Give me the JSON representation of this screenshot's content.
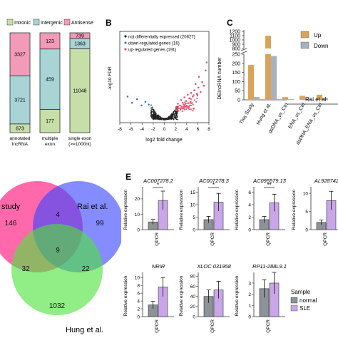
{
  "panel_labels": {
    "b": "B",
    "c": "C",
    "e": "E"
  },
  "chart_data": [
    {
      "id": "stacked",
      "type": "bar",
      "legend": [
        "Intronic",
        "Intergenic",
        "Antisense"
      ],
      "colors": {
        "Intronic": "#c6dfa8",
        "Intergenic": "#a8d4d6",
        "Antisense": "#f29bb8"
      },
      "categories": [
        "annotated lncRNA",
        "multiple exon",
        "single exon (>=1000nt)"
      ],
      "category_lines": [
        [
          "annotated",
          "lncRNA"
        ],
        [
          "multiple",
          "exon"
        ],
        [
          "single exon",
          "(>=1000nt)"
        ]
      ],
      "series": [
        {
          "name": "Intronic",
          "values": [
            673,
            177,
            11048
          ]
        },
        {
          "name": "Intergenic",
          "values": [
            3721,
            459,
            1363
          ]
        },
        {
          "name": "Antisense",
          "values": [
            3327,
            123,
            739
          ]
        }
      ]
    },
    {
      "id": "volcano",
      "type": "scatter",
      "xlabel": "log2 fold change",
      "ylabel": "-log10 FDR",
      "xticks": [
        "-8",
        "-6",
        "-4",
        "-2",
        "0",
        "2",
        "4",
        "6",
        "8"
      ],
      "xlim": [
        -8,
        8
      ],
      "legend": [
        {
          "label": "not differentially expressed (20627)",
          "color": "#222222"
        },
        {
          "label": "down-regulated genes (16)",
          "color": "#3a7bd5"
        },
        {
          "label": "up-regulated genes (191)",
          "color": "#e8536f"
        }
      ],
      "points_up": [
        [
          2.1,
          1.4
        ],
        [
          2.4,
          1.8
        ],
        [
          2.8,
          1.6
        ],
        [
          3.0,
          2.2
        ],
        [
          3.3,
          1.9
        ],
        [
          3.6,
          2.5
        ],
        [
          3.9,
          2.1
        ],
        [
          4.2,
          2.8
        ],
        [
          4.5,
          2.4
        ],
        [
          4.8,
          3.0
        ],
        [
          5.1,
          2.6
        ],
        [
          5.4,
          3.3
        ],
        [
          5.8,
          2.9
        ],
        [
          6.1,
          3.6
        ],
        [
          6.5,
          3.1
        ],
        [
          6.8,
          4.2
        ],
        [
          7.1,
          3.8
        ],
        [
          7.4,
          5.5
        ],
        [
          7.6,
          6.4
        ],
        [
          6.2,
          4.8
        ],
        [
          5.6,
          4.0
        ]
      ],
      "points_down": [
        [
          -2.3,
          1.3
        ],
        [
          -2.8,
          1.7
        ],
        [
          -3.4,
          2.0
        ],
        [
          -4.1,
          1.6
        ],
        [
          -4.9,
          2.3
        ],
        [
          -5.8,
          1.9
        ],
        [
          -6.6,
          2.6
        ]
      ]
    },
    {
      "id": "deincrna",
      "type": "bar",
      "ylabel": "DEIncRNA number",
      "legend": [
        {
          "label": "Up",
          "color": "#d9a45a"
        },
        {
          "label": "Down",
          "color": "#a9b1bb"
        }
      ],
      "categories": [
        "This Study",
        "Hung et al.",
        "dsDNA_vs_Ctrl",
        "ENA_vs_Ctrl",
        "dsDNA_ENA_vs_Ctrl"
      ],
      "category_lines": [
        "This Study",
        "Hung et al.",
        "dsDNA_vs_Ctrl",
        "ENA_vs_Ctrl",
        "dsDNA_ENA_vs_Ctrl"
      ],
      "series": [
        {
          "name": "Up",
          "values": [
            191,
            1100,
            15,
            22,
            28
          ]
        },
        {
          "name": "Down",
          "values": [
            16,
            240,
            4,
            6,
            10
          ]
        }
      ],
      "yticks": [
        "0",
        "50",
        "100",
        "150",
        "200",
        "250",
        "800",
        "900",
        "1000",
        "1100",
        "1200"
      ],
      "group_label": "Rai et al."
    },
    {
      "id": "venn",
      "type": "venn",
      "sets": [
        "study",
        "Rai et al.",
        "Hung et al."
      ],
      "values": {
        "study_only": 146,
        "study_rai": 4,
        "rai_only": 99,
        "all": 9,
        "study_hung": 32,
        "rai_hung": 22,
        "hung_only": 1032
      }
    },
    {
      "id": "expression",
      "type": "bar",
      "ylabel": "Relative expression",
      "xlabel": "QPCR",
      "legend_title": "Sample",
      "legend": [
        {
          "label": "normal",
          "color": "#8c9297"
        },
        {
          "label": "SLE",
          "color": "#c9a6e8"
        }
      ],
      "panels": [
        {
          "gene": "AC007278.2",
          "normal": 5,
          "sle": 19,
          "sig": "*",
          "ticks": [
            "0",
            "10",
            "20"
          ],
          "ymax": 26
        },
        {
          "gene": "AC007278.3",
          "normal": 4,
          "sle": 11,
          "sig": "*",
          "ticks": [
            "0",
            "5",
            "10",
            "15"
          ],
          "ymax": 16
        },
        {
          "gene": "AC095579.13",
          "normal": 1.6,
          "sle": 4.3,
          "sig": "**",
          "ticks": [
            "0",
            "2",
            "4",
            "6"
          ],
          "ymax": 6.4
        },
        {
          "gene": "AL928742",
          "normal": 2,
          "sle": 8,
          "sig": "",
          "ticks": [
            "0",
            "5",
            "10"
          ],
          "ymax": 11
        },
        {
          "gene": "NRIR",
          "normal": 3,
          "sle": 7.6,
          "sig": "",
          "ticks": [
            "0",
            "2",
            "4",
            "6",
            "8",
            "10"
          ],
          "ymax": 10.6
        },
        {
          "gene": "XLOC 031958",
          "normal": 40,
          "sle": 53,
          "sig": "",
          "ticks": [
            "0",
            "20",
            "40",
            "60",
            "80"
          ],
          "ymax": 82
        },
        {
          "gene": "RP11-288L9.1",
          "normal": 2.5,
          "sle": 3,
          "sig": "",
          "ticks": [
            "0",
            "1",
            "2",
            "3"
          ],
          "ymax": 3.7
        }
      ]
    }
  ]
}
